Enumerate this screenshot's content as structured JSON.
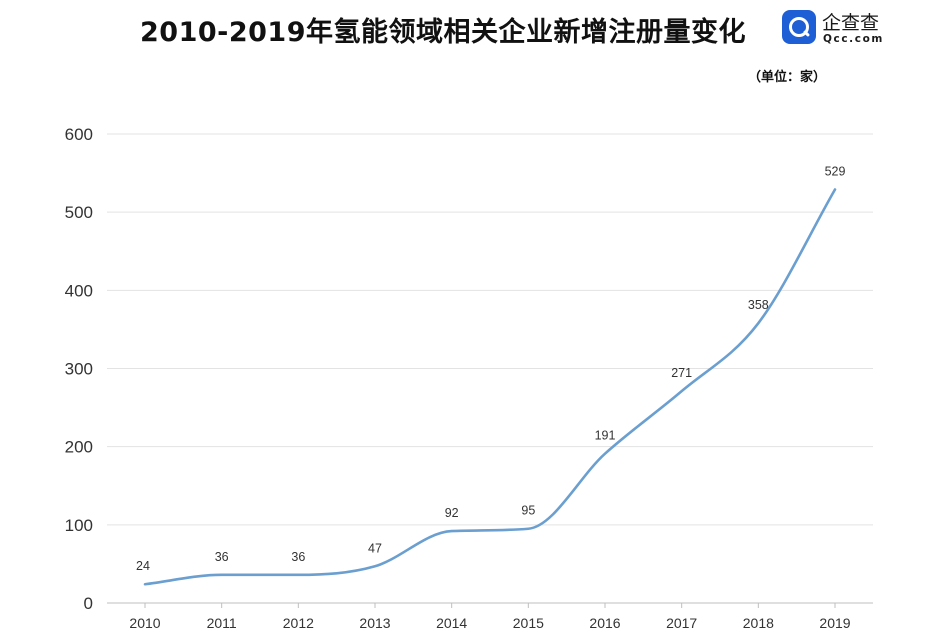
{
  "header": {
    "title": "2010-2019年氢能领域相关企业新增注册量变化",
    "unit": "（单位：家）"
  },
  "logo": {
    "name": "企查查",
    "url": "Qcc.com",
    "icon": "magnifier-icon",
    "color": "#1f5fd6"
  },
  "chart_data": {
    "type": "line",
    "title": "2010-2019年氢能领域相关企业新增注册量变化",
    "unit": "（单位：家）",
    "x": [
      "2010",
      "2011",
      "2012",
      "2013",
      "2014",
      "2015",
      "2016",
      "2017",
      "2018",
      "2019"
    ],
    "series": [
      {
        "values": [
          24,
          36,
          36,
          47,
          92,
          95,
          191,
          271,
          358,
          529
        ],
        "color": "#6a9fd0"
      }
    ],
    "yticks": [
      0,
      100,
      200,
      300,
      400,
      500,
      600
    ],
    "ylim": [
      0,
      600
    ],
    "grid": true,
    "smooth": true,
    "data_labels": true
  }
}
